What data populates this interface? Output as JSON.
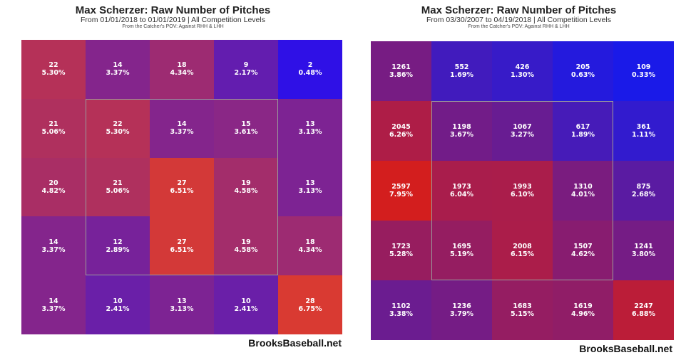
{
  "chart_data": [
    {
      "type": "heatmap",
      "title": "Max Scherzer: Raw Number of Pitches",
      "subtitle": "From 01/01/2018 to 01/01/2019 | All Competition Levels",
      "note": "From the Catcher's POV:  Against RHH & LHH",
      "watermark": "BrooksBaseball.net",
      "rows": 5,
      "cols": 5,
      "counts": [
        [
          22,
          14,
          18,
          9,
          2
        ],
        [
          21,
          22,
          14,
          15,
          13
        ],
        [
          20,
          21,
          27,
          19,
          13
        ],
        [
          14,
          12,
          27,
          19,
          18
        ],
        [
          14,
          10,
          13,
          10,
          28
        ]
      ],
      "percents": [
        [
          "5.30%",
          "3.37%",
          "4.34%",
          "2.17%",
          "0.48%"
        ],
        [
          "5.06%",
          "5.30%",
          "3.37%",
          "3.61%",
          "3.13%"
        ],
        [
          "4.82%",
          "5.06%",
          "6.51%",
          "4.58%",
          "3.13%"
        ],
        [
          "3.37%",
          "2.89%",
          "6.51%",
          "4.58%",
          "4.34%"
        ],
        [
          "3.37%",
          "2.41%",
          "3.13%",
          "2.41%",
          "6.75%"
        ]
      ],
      "colors": {
        "low": "#2f10e6",
        "high": "#d93a32"
      }
    },
    {
      "type": "heatmap",
      "title": "Max Scherzer: Raw Number of Pitches",
      "subtitle": "From 03/30/2007 to 04/19/2018 | All Competition Levels",
      "note": "From the Catcher's POV:  Against RHH & LHH",
      "watermark": "BrooksBaseball.net",
      "rows": 5,
      "cols": 5,
      "counts": [
        [
          1261,
          552,
          426,
          205,
          109
        ],
        [
          2045,
          1198,
          1067,
          617,
          361
        ],
        [
          2597,
          1973,
          1993,
          1310,
          875
        ],
        [
          1723,
          1695,
          2008,
          1507,
          1241
        ],
        [
          1102,
          1236,
          1683,
          1619,
          2247
        ]
      ],
      "percents": [
        [
          "3.86%",
          "1.69%",
          "1.30%",
          "0.63%",
          "0.33%"
        ],
        [
          "6.26%",
          "3.67%",
          "3.27%",
          "1.89%",
          "1.11%"
        ],
        [
          "7.95%",
          "6.04%",
          "6.10%",
          "4.01%",
          "2.68%"
        ],
        [
          "5.28%",
          "5.19%",
          "6.15%",
          "4.62%",
          "3.80%"
        ],
        [
          "3.38%",
          "3.79%",
          "5.15%",
          "4.96%",
          "6.88%"
        ]
      ],
      "colors": {
        "low": "#1a1ae8",
        "high": "#d31e1e"
      }
    }
  ]
}
